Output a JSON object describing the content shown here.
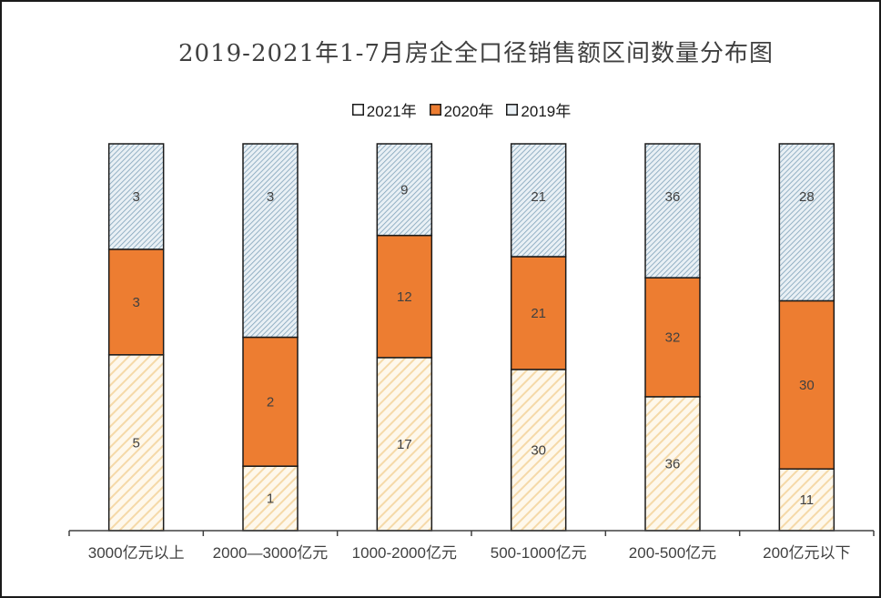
{
  "chart_data": {
    "type": "bar",
    "stacked": "percent",
    "title": "2019-2021年1-7月房企全口径销售额区间数量分布图",
    "categories": [
      "3000亿元以上",
      "2000—3000亿元",
      "1000-2000亿元",
      "500-1000亿元",
      "200-500亿元",
      "200亿元以下"
    ],
    "series": [
      {
        "name": "2021年",
        "values": [
          5,
          1,
          17,
          30,
          36,
          11
        ],
        "color": "#fdf2dc",
        "pattern": "diagonal-hatch",
        "hatch_color": "#f5d9a8"
      },
      {
        "name": "2020年",
        "values": [
          3,
          2,
          12,
          21,
          32,
          30
        ],
        "color": "#ed7d31",
        "pattern": "solid"
      },
      {
        "name": "2019年",
        "values": [
          3,
          3,
          9,
          21,
          36,
          28
        ],
        "color": "#dbe6ee",
        "pattern": "diagonal-hatch",
        "hatch_color": "#7fa2b9"
      }
    ],
    "legend_position": "top",
    "grid": false,
    "ylim": [
      0,
      100
    ]
  }
}
